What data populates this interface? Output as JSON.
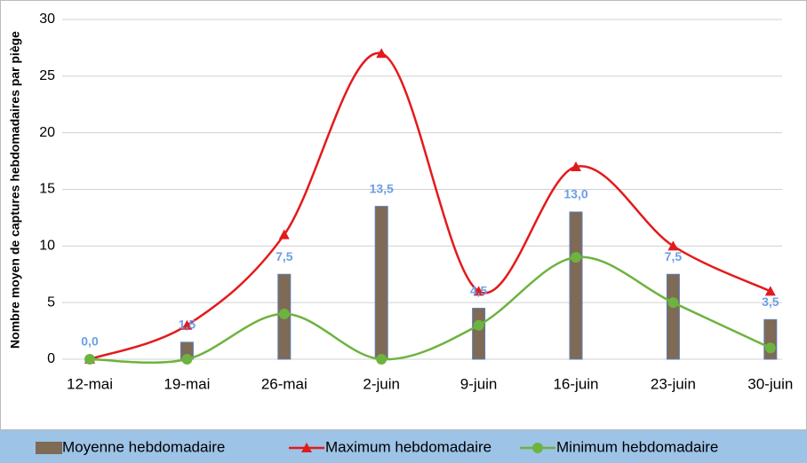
{
  "chart_data": {
    "type": "bar_line",
    "y_label": "Nombre moyen de captures hebdomadaires par piège",
    "categories": [
      "12-mai",
      "19-mai",
      "26-mai",
      "2-juin",
      "9-juin",
      "16-juin",
      "23-juin",
      "30-juin"
    ],
    "series": [
      {
        "name": "Moyenne hebdomadaire",
        "kind": "bar",
        "color": "#7f6a56",
        "values": [
          0,
          1.5,
          7.5,
          13.5,
          4.5,
          13.0,
          7.5,
          3.5
        ],
        "value_labels": [
          "0,0",
          "1,5",
          "7,5",
          "13,5",
          "4,5",
          "13,0",
          "7,5",
          "3,5"
        ]
      },
      {
        "name": "Maximum hebdomadaire",
        "kind": "line",
        "marker": "triangle",
        "color": "#e31a1c",
        "values": [
          0,
          3,
          11,
          27,
          6,
          17,
          10,
          6
        ]
      },
      {
        "name": "Minimum hebdomadaire",
        "kind": "line",
        "marker": "circle",
        "color": "#6db33f",
        "values": [
          0,
          0,
          4,
          0,
          3,
          9,
          5,
          1
        ]
      }
    ],
    "ylim": [
      0,
      30
    ],
    "yticks": [
      0,
      5,
      10,
      15,
      20,
      25,
      30
    ],
    "grid": true,
    "legend": "bottom"
  }
}
